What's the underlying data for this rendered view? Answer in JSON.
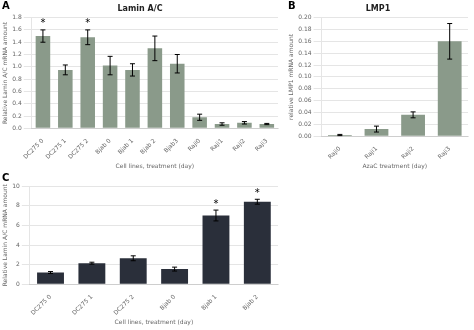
{
  "chart_data": [
    {
      "type": "bar",
      "panel_label": "A",
      "title": "Lamin A/C",
      "xlabel": "Cell lines, treatment (day)",
      "ylabel": "Relative Lamin A/C mRNA amount",
      "categories": [
        "DC275 0",
        "DC275 1",
        "DC275 2",
        "Bjab 0",
        "Bjab 1",
        "Bjab 2",
        "Bjab3",
        "Raji0",
        "Raji1",
        "Raji2",
        "Raji3"
      ],
      "values": [
        1.5,
        0.95,
        1.48,
        1.02,
        0.95,
        1.3,
        1.05,
        0.18,
        0.07,
        0.09,
        0.07
      ],
      "errors": [
        0.1,
        0.08,
        0.12,
        0.15,
        0.1,
        0.2,
        0.15,
        0.05,
        0.02,
        0.02,
        0.01
      ],
      "color": "#8a9a8a",
      "ylim": [
        0,
        1.8
      ],
      "yticks": [
        {
          "value": 0.0,
          "label": "0.0"
        },
        0.2,
        0.4,
        0.6,
        0.8,
        {
          "value": 1.0,
          "label": "1.0"
        },
        1.2,
        1.4,
        1.6,
        1.8
      ],
      "grid": true,
      "annotations": [
        {
          "category": "DC275 0",
          "text": "*"
        },
        {
          "category": "DC275 2",
          "text": "*"
        }
      ]
    },
    {
      "type": "bar",
      "panel_label": "B",
      "title": "LMP1",
      "xlabel": "AzaC treatment (day)",
      "ylabel": "relative LMP1 mRNA amount",
      "categories": [
        "Raji0",
        "Raji1",
        "Raji2",
        "Raji3"
      ],
      "values": [
        0.002,
        0.012,
        0.036,
        0.16
      ],
      "errors": [
        0.001,
        0.005,
        0.005,
        0.03
      ],
      "color": "#8a9a8a",
      "ylim": [
        0,
        0.2
      ],
      "yticks": [
        {
          "value": 0.0,
          "label": "0.00"
        },
        0.02,
        0.04,
        0.06,
        0.08,
        {
          "value": 0.1,
          "label": "0.10"
        },
        0.12,
        0.14,
        0.16,
        0.18,
        {
          "value": 0.2,
          "label": "0.20"
        }
      ],
      "grid": true
    },
    {
      "type": "bar",
      "panel_label": "C",
      "xlabel": "Cell lines, treatment (day)",
      "ylabel": "Relative Lamin A/C mRNA amount",
      "categories": [
        "DC275 0",
        "DC275 1",
        "DC275 2",
        "Bjab 0",
        "Bjab 1",
        "Bjab 2"
      ],
      "values": [
        1.2,
        2.15,
        2.65,
        1.55,
        7.0,
        8.4
      ],
      "errors": [
        0.1,
        0.1,
        0.25,
        0.2,
        0.55,
        0.25
      ],
      "color": "#2a2f3a",
      "ylim": [
        0,
        10
      ],
      "yticks": [
        0,
        2,
        4,
        6,
        8,
        10
      ],
      "grid": true,
      "annotations": [
        {
          "category": "Bjab 1",
          "text": "*"
        },
        {
          "category": "Bjab 2",
          "text": "*"
        }
      ]
    }
  ]
}
